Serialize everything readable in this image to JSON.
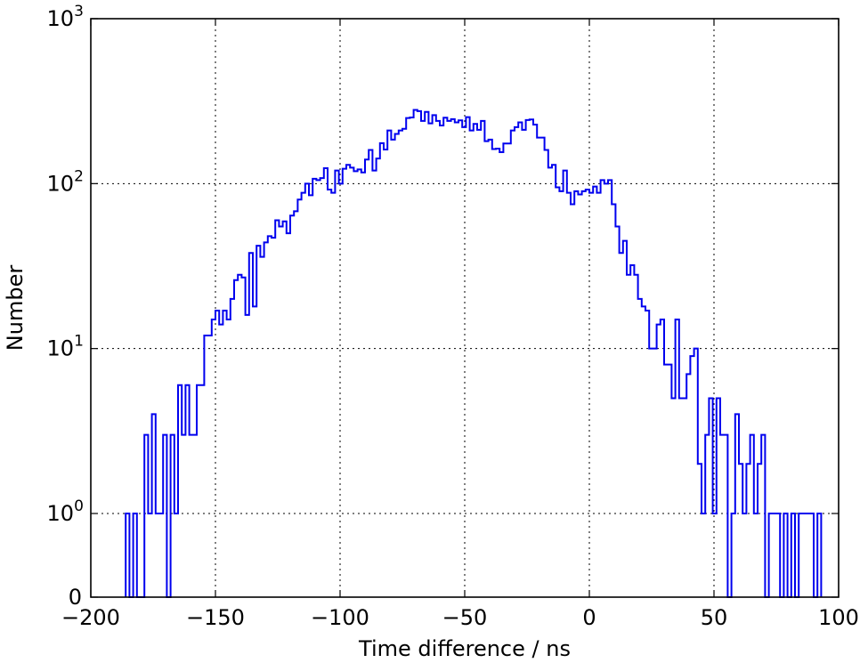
{
  "chart_data": {
    "type": "histogram",
    "title": "",
    "xlabel": "Time difference / ns",
    "ylabel": "Number",
    "xlim": [
      -200,
      100
    ],
    "y_scale": "symlog",
    "y_ticks": [
      {
        "value": 0,
        "base": "0",
        "exp": ""
      },
      {
        "value": 1,
        "base": "10",
        "exp": "0"
      },
      {
        "value": 10,
        "base": "10",
        "exp": "1"
      },
      {
        "value": 100,
        "base": "10",
        "exp": "2"
      },
      {
        "value": 1000,
        "base": "10",
        "exp": "3"
      }
    ],
    "x_ticks": [
      {
        "value": -200,
        "label": "−200"
      },
      {
        "value": -150,
        "label": "−150"
      },
      {
        "value": -100,
        "label": "−100"
      },
      {
        "value": -50,
        "label": "−50"
      },
      {
        "value": 0,
        "label": "0"
      },
      {
        "value": 50,
        "label": "50"
      },
      {
        "value": 100,
        "label": "100"
      }
    ],
    "grid": true,
    "line_color": "#0000ee",
    "bin_width": 1.5,
    "bin_start": -186,
    "counts": [
      1,
      0,
      1,
      0,
      0,
      3,
      1,
      4,
      1,
      1,
      3,
      0,
      3,
      1,
      6,
      3,
      6,
      3,
      3,
      6,
      6,
      12,
      12,
      15,
      17,
      14,
      17,
      15,
      20,
      26,
      28,
      27,
      16,
      38,
      18,
      42,
      36,
      44,
      48,
      47,
      60,
      55,
      59,
      50,
      64,
      68,
      80,
      88,
      100,
      85,
      107,
      105,
      108,
      124,
      92,
      88,
      120,
      100,
      123,
      130,
      125,
      119,
      122,
      117,
      140,
      160,
      120,
      142,
      176,
      161,
      210,
      185,
      200,
      210,
      215,
      250,
      252,
      280,
      275,
      240,
      272,
      232,
      260,
      240,
      225,
      251,
      240,
      246,
      235,
      242,
      220,
      253,
      210,
      230,
      212,
      240,
      181,
      185,
      162,
      163,
      155,
      175,
      175,
      210,
      220,
      235,
      212,
      243,
      245,
      228,
      190,
      190,
      160,
      125,
      130,
      95,
      90,
      120,
      88,
      75,
      90,
      86,
      90,
      92,
      88,
      96,
      88,
      105,
      100,
      105,
      75,
      55,
      38,
      45,
      28,
      32,
      28,
      20,
      18,
      17,
      10,
      10,
      14,
      15,
      8,
      8,
      5,
      15,
      5,
      5,
      7,
      9,
      10,
      2,
      1,
      3,
      5,
      1,
      5,
      3,
      3,
      0,
      1,
      4,
      2,
      1,
      2,
      3,
      1,
      2,
      3,
      0,
      1,
      1,
      1,
      0,
      1,
      0,
      1,
      0,
      1,
      1,
      1,
      1,
      0,
      1
    ]
  }
}
